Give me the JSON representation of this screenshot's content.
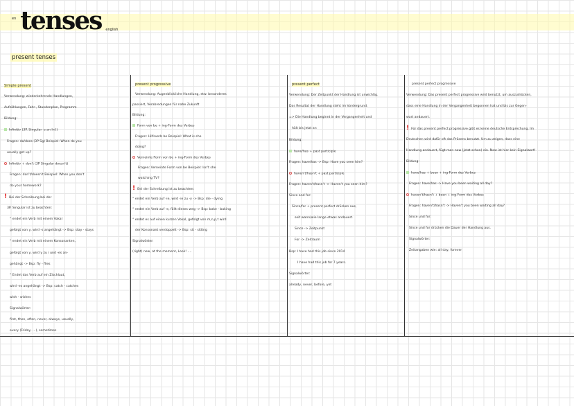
{
  "header": {
    "small_tag": "en",
    "title": "tenses",
    "subject": "english",
    "section": "present tenses"
  },
  "colors": {
    "highlight": "#fffaa0",
    "plus_marker": "#b8e6a8",
    "minus_marker": "#e05a5a",
    "warning": "#e02020"
  },
  "columns": [
    {
      "lines": [
        {
          "t": "Simple present",
          "h": true
        },
        {
          "t": "Verwendung: wiederkehrende Handlungen,"
        },
        {
          "t": "Aufzählungen, Fahr-, Stundenplan, Programm"
        },
        {
          "t": "Bildung:"
        },
        {
          "t": "Infinitiv (3P. Singular -s an Inf.)",
          "m": "plus"
        },
        {
          "t": "Fragen: do/does (3P Sg)   Beispiel: When do you",
          "i": 1
        },
        {
          "t": "usually get up?",
          "i": 1
        },
        {
          "t": "Infinitiv + don't (3P Singular doesn't)",
          "m": "minus"
        },
        {
          "t": "Fragen: don't/doesn't   Beispiel: When you don't",
          "i": 2
        },
        {
          "t": "do your homework?",
          "i": 2
        },
        {
          "t": "Bei der Schreibung bei der",
          "m": "warn"
        },
        {
          "t": "3P. Singular ist zu beachten:",
          "i": 1
        },
        {
          "t": "° endet ein Verb mit einem Vokal",
          "i": 2
        },
        {
          "t": "gefolgt von y, wird -s angehängt -> Bsp: stay - stays",
          "i": 2
        },
        {
          "t": "° endet ein Verb mit einem Konsonanten,",
          "i": 2
        },
        {
          "t": "gefolgt von y, wird y zu i und -es an-",
          "i": 2
        },
        {
          "t": "gehängt -> Bsp: fly - flies",
          "i": 2
        },
        {
          "t": "° Endet das Verb auf ein Zischlaut,",
          "i": 2
        },
        {
          "t": "wird -es angehängt -> Bsp: catch - catches",
          "i": 2
        },
        {
          "t": "wish - wishes",
          "i": 2
        },
        {
          "t": "Signalwörter:",
          "i": 2
        },
        {
          "t": "first, then, often, never, always, usually,",
          "i": 2
        },
        {
          "t": "every (Friday, ...), sometimes",
          "i": 2
        }
      ]
    },
    {
      "lines": [
        {
          "t": "present progressive",
          "h": true,
          "i": 1
        },
        {
          "t": "Verwendung: Augenblickliche Handlung, etw. besonderes",
          "i": 1
        },
        {
          "t": "passiert, Verabredungen für nahe Zukunft"
        },
        {
          "t": "Bildung:"
        },
        {
          "t": "Form von be + ing-Form des Verbes",
          "m": "plus"
        },
        {
          "t": "Fragen: Hilfsverb be   Beispiel: What is she",
          "i": 1
        },
        {
          "t": "doing?",
          "i": 1
        },
        {
          "t": "Verneinte Form von be + ing-Form des Verbes",
          "m": "minus"
        },
        {
          "t": "Fragen: Verneinte Form von be   Beispiel: Isn't she",
          "i": 2
        },
        {
          "t": "watching TV?",
          "i": 2
        },
        {
          "t": "Bei der Schreibung ist zu beachten:",
          "m": "warn"
        },
        {
          "t": "° endet ein Verb auf -ie, wird -ie zu -y -> Bsp: die - dying"
        },
        {
          "t": "° endet ein Verb auf -e, fällt dieses weg -> Bsp: bake - baking"
        },
        {
          "t": "° endet es auf einen kurzen Vokal, gefolgt von m,n,p,t wird"
        },
        {
          "t": "der Konsonant verdoppelt -> Bsp: sit - sitting",
          "i": 1
        },
        {
          "t": "Signalwörter:"
        },
        {
          "t": "(right) now, at the moment, Look! ...."
        }
      ]
    },
    {
      "lines": [
        {
          "t": "present perfect",
          "h": true,
          "i": 1
        },
        {
          "t": "Verwendung: Der Zeitpunkt der Handlung ist unwichtig."
        },
        {
          "t": "Das Resultat der Handlung steht im Vordergrund."
        },
        {
          "t": "=> Die Handlung beginnt in der Vergangenheit und"
        },
        {
          "t": "hält bis jetzt an",
          "i": 1
        },
        {
          "t": "Bildung:"
        },
        {
          "t": "have/has + past participle",
          "m": "plus"
        },
        {
          "t": "Fragen: have/has -> Bsp: Have you seen him?"
        },
        {
          "t": "haven't/hasn't + past participle",
          "m": "minus"
        },
        {
          "t": "Fragen: haven't/hasn't -> Haven't you seen him?"
        },
        {
          "t": "Since and for:"
        },
        {
          "t": "Since/for + present perfect drücken aus,",
          "i": 1
        },
        {
          "t": "seit wann/wie lange etwas andauert.",
          "i": 2
        },
        {
          "t": "Since -> Zeitpunkt",
          "i": 2
        },
        {
          "t": "For -> Zeitraum",
          "i": 2
        },
        {
          "t": "Bsp: I have had this job since 2014"
        },
        {
          "t": "I have had this job for 7 years.",
          "i": 3
        },
        {
          "t": "Signalwörter:"
        },
        {
          "t": "already, never, before, yet"
        }
      ]
    },
    {
      "lines": [
        {
          "t": "present perfect progressive",
          "i": 2
        },
        {
          "t": "Verwendung: Das present perfect progressive wird benutzt, um auszudrücken,"
        },
        {
          "t": "dass eine Handlung in der Vergangenheit begonnen hat und bis zur Gegen-"
        },
        {
          "t": "wart andauert."
        },
        {
          "t": "Für das present perfect progressive gibt es keine deutsche Entsprechung. Im",
          "m": "warn"
        },
        {
          "t": "Deutschen wird dafür oft das Präsens benutzt. Um zu zeigen, dass eine"
        },
        {
          "t": "Handlung andauert, fügt man now (jetzt schon) ein. Now ist hier kein Signalwort!"
        },
        {
          "t": "Bildung:"
        },
        {
          "t": "have/has + been + ing-Form des Verbes",
          "m": "plus"
        },
        {
          "t": "Fragen: have/has -> Have you been waiting all day?",
          "i": 1
        },
        {
          "t": "haven't/hasn't + been + ing-Form des Verbes",
          "m": "minus"
        },
        {
          "t": "Fragen: haven't/hasn't -> Haven't you been waiting all day?",
          "i": 1
        },
        {
          "t": "Since und for:",
          "i": 1
        },
        {
          "t": "Since und for drücken die Dauer der Handlung aus.",
          "i": 1
        },
        {
          "t": "Signalwörter:",
          "i": 1
        },
        {
          "t": "Zeitangaben wie: all day, forever",
          "i": 1
        }
      ]
    }
  ]
}
